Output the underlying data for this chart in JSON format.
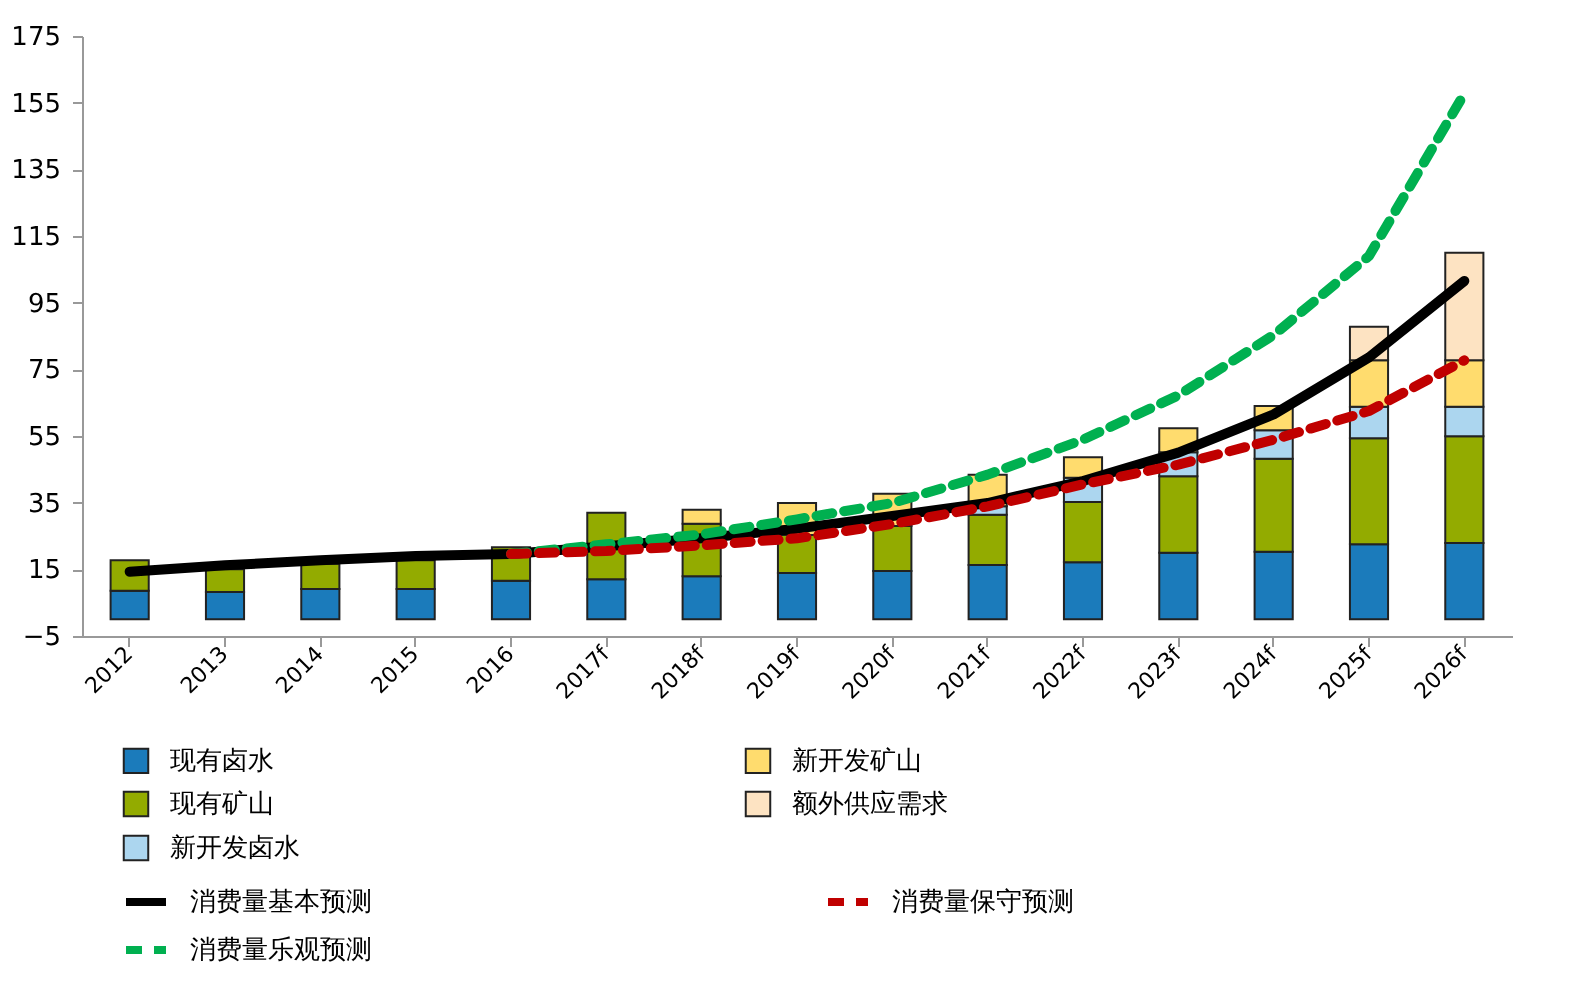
{
  "chart_data": {
    "type": "bar",
    "stacked": true,
    "categories": [
      "2012",
      "2013",
      "2014",
      "2015",
      "2016",
      "2017f",
      "2018f",
      "2019f",
      "2020f",
      "2021f",
      "2022f",
      "2023f",
      "2024f",
      "2025f",
      "2026f"
    ],
    "series": [
      {
        "name": "现有卤水",
        "color": "#1b7bbb",
        "values": [
          8.6,
          8.2,
          9.1,
          9.1,
          11.6,
          12,
          12.9,
          13.9,
          14.5,
          16.3,
          17.1,
          20,
          20.3,
          22.5,
          22.9
        ]
      },
      {
        "name": "现有矿山",
        "color": "#93ab00",
        "values": [
          9.1,
          6.8,
          7.6,
          8.6,
          10,
          20,
          15.8,
          11.4,
          13.5,
          15.1,
          18.1,
          22.9,
          27.9,
          31.8,
          32
        ]
      },
      {
        "name": "新开发卤水",
        "color": "#acd6ef",
        "values": [
          null,
          null,
          null,
          null,
          null,
          null,
          null,
          null,
          null,
          2.5,
          7.3,
          7.2,
          8.5,
          9.5,
          8.9
        ]
      },
      {
        "name": "新开发矿山",
        "color": "#ffdc6e",
        "values": [
          null,
          null,
          null,
          null,
          null,
          null,
          4.2,
          9.6,
          9.7,
          9.5,
          6.1,
          7.2,
          7.3,
          13.9,
          13.9
        ]
      },
      {
        "name": "额外供应需求",
        "color": "#fde3c2",
        "values": [
          null,
          null,
          null,
          null,
          null,
          null,
          null,
          null,
          null,
          null,
          null,
          null,
          null,
          10.1,
          32.3
        ]
      },
      {
        "name": "消费量基本预测",
        "type": "line",
        "line_style": "solid",
        "color": "#000000",
        "values": [
          14.3,
          16.2,
          17.7,
          19,
          19.6,
          21.9,
          24.3,
          27.2,
          31,
          34.9,
          41.5,
          50,
          61.5,
          78.6,
          101.5
        ]
      },
      {
        "name": "消费量乐观预测",
        "type": "line",
        "line_style": "dashed",
        "color": "#00b050",
        "values": [
          null,
          null,
          null,
          null,
          19.6,
          22.5,
          25.5,
          30,
          34.9,
          43.4,
          53.9,
          67.2,
          85.3,
          109,
          157.7
        ]
      },
      {
        "name": "消费量保守预测",
        "type": "line",
        "line_style": "dashed",
        "color": "#c00000",
        "values": [
          null,
          null,
          null,
          null,
          19.6,
          20.5,
          22.2,
          24.3,
          28.6,
          33.9,
          40.5,
          46.4,
          53.9,
          62.5,
          77.7
        ]
      }
    ],
    "ylim": [
      -5,
      175
    ],
    "yticks": [
      -5,
      15,
      35,
      55,
      75,
      95,
      115,
      135,
      155,
      175
    ],
    "grid": false,
    "legend": "bottom"
  }
}
